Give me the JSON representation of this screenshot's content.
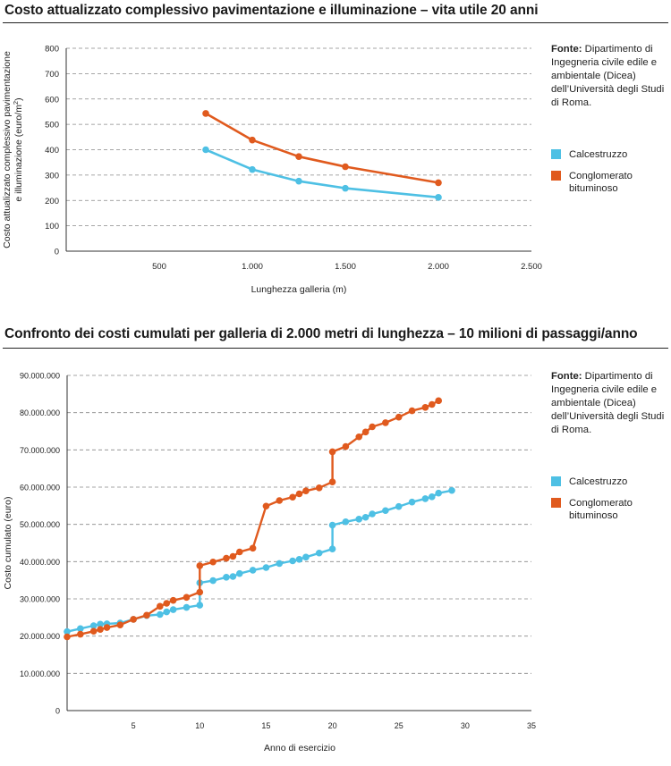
{
  "source": {
    "label": "Fonte:",
    "text": "Dipartimento di Ingegneria civile edile e ambientale (Dicea) dell’Università degli Studi di Roma."
  },
  "colors": {
    "calcestruzzo": "#4ec0e4",
    "conglomerato": "#e05a1e",
    "grid": "#888888",
    "axis": "#333333"
  },
  "chart_data": [
    {
      "type": "line",
      "title": "Costo attualizzato complessivo pavimentazione e illuminazione – vita utile 20 anni",
      "xlabel": "Lunghezza galleria (m)",
      "ylabel_line1": "Costo attualizzato complessivo pavimentazione",
      "ylabel_line2": "e illuminazione (euro/m",
      "ylabel_sup": "2",
      "ylabel_end": ")",
      "xlim": [
        0,
        2500
      ],
      "ylim": [
        0,
        800
      ],
      "xticks": [
        500,
        1000,
        1500,
        2000,
        2500
      ],
      "xtick_labels": [
        "500",
        "1.000",
        "1.500",
        "2.000",
        "2.500"
      ],
      "yticks": [
        0,
        100,
        200,
        300,
        400,
        500,
        600,
        700,
        800
      ],
      "ytick_labels": [
        "0",
        "100",
        "200",
        "300",
        "400",
        "500",
        "600",
        "700",
        "800"
      ],
      "grid": true,
      "legend": "right",
      "series": [
        {
          "name": "Calcestruzzo",
          "color_key": "calcestruzzo",
          "x": [
            750,
            1000,
            1250,
            1500,
            2000
          ],
          "y": [
            400,
            322,
            276,
            248,
            212
          ]
        },
        {
          "name": "Conglomerato bituminoso",
          "color_key": "conglomerato",
          "x": [
            750,
            1000,
            1250,
            1500,
            2000
          ],
          "y": [
            543,
            438,
            373,
            333,
            270
          ]
        }
      ]
    },
    {
      "type": "line",
      "title": "Confronto dei costi cumulati per galleria di 2.000 metri di lunghezza – 10 milioni di passaggi/anno",
      "xlabel": "Anno di esercizio",
      "ylabel": "Costo cumulato (euro)",
      "xlim": [
        0,
        35
      ],
      "ylim": [
        0,
        90000000
      ],
      "xticks": [
        5,
        10,
        15,
        20,
        25,
        30,
        35
      ],
      "xtick_labels": [
        "5",
        "10",
        "15",
        "20",
        "25",
        "30",
        "35"
      ],
      "yticks": [
        0,
        10000000,
        20000000,
        30000000,
        40000000,
        50000000,
        60000000,
        70000000,
        80000000,
        90000000
      ],
      "ytick_labels": [
        "0",
        "10.000.000",
        "20.000.000",
        "30.000.000",
        "40.000.000",
        "50.000.000",
        "60.000.000",
        "70.000.000",
        "80.000.000",
        "90.000.000"
      ],
      "grid": true,
      "legend": "right",
      "series": [
        {
          "name": "Calcestruzzo",
          "color_key": "calcestruzzo",
          "x": [
            0,
            1,
            2,
            2.5,
            3,
            4,
            5,
            6,
            7,
            7.5,
            8,
            9,
            10,
            10,
            11,
            12,
            12.5,
            13,
            14,
            15,
            16,
            17,
            17.5,
            18,
            19,
            20,
            20,
            21,
            22,
            22.5,
            23,
            24,
            25,
            26,
            27,
            27.5,
            28,
            29
          ],
          "y": [
            21200000,
            22000000,
            22800000,
            23200000,
            23300000,
            23500000,
            24500000,
            25500000,
            25800000,
            26500000,
            27100000,
            27700000,
            28300000,
            34300000,
            34900000,
            35800000,
            36000000,
            36800000,
            37700000,
            38400000,
            39500000,
            40200000,
            40600000,
            41200000,
            42300000,
            43400000,
            49800000,
            50700000,
            51400000,
            51900000,
            52800000,
            53700000,
            54800000,
            56000000,
            56900000,
            57400000,
            58400000,
            59100000
          ]
        },
        {
          "name": "Conglomerato bituminoso",
          "color_key": "conglomerato",
          "x": [
            0,
            1,
            2,
            2.5,
            3,
            4,
            5,
            6,
            7,
            7.5,
            8,
            9,
            10,
            10,
            11,
            12,
            12.5,
            13,
            14,
            15,
            16,
            17,
            17.5,
            18,
            19,
            20,
            20,
            21,
            22,
            22.5,
            23,
            24,
            25,
            26,
            27,
            27.5,
            28
          ],
          "y": [
            19800000,
            20500000,
            21300000,
            21800000,
            22300000,
            23000000,
            24500000,
            25600000,
            28000000,
            28800000,
            29600000,
            30400000,
            31800000,
            38900000,
            39900000,
            40900000,
            41400000,
            42600000,
            43600000,
            54900000,
            56400000,
            57300000,
            58200000,
            59000000,
            59800000,
            61400000,
            69500000,
            70900000,
            73500000,
            74800000,
            76200000,
            77300000,
            78800000,
            80500000,
            81400000,
            82200000,
            83200000
          ]
        }
      ]
    }
  ]
}
